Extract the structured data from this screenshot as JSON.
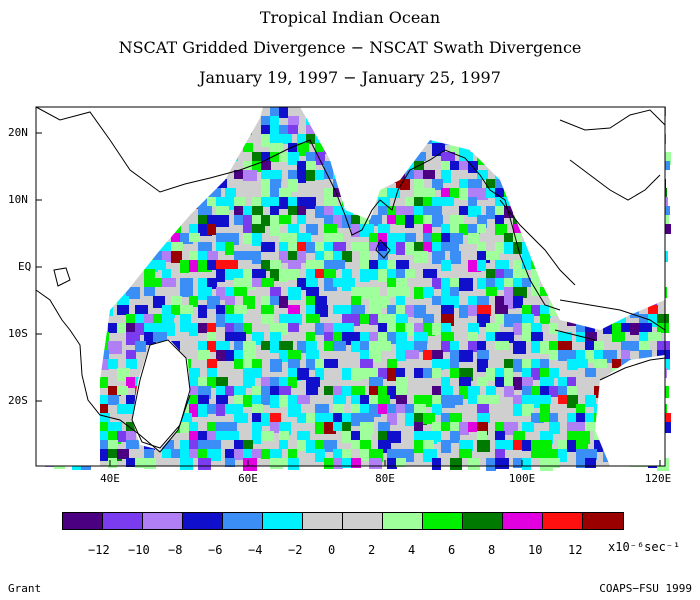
{
  "titles": {
    "line1": "Tropical Indian Ocean",
    "line2": "NSCAT Gridded Divergence − NSCAT Swath Divergence",
    "line3": "January 19, 1997 − January 25, 1997"
  },
  "axes": {
    "lat_labels": [
      "20N",
      "10N",
      "EQ",
      "10S",
      "20S"
    ],
    "lon_labels": [
      "40E",
      "60E",
      "80E",
      "100E",
      "120E"
    ]
  },
  "colorbar": {
    "colors": [
      "#4b0082",
      "#7b3cf0",
      "#b07ef5",
      "#1010cc",
      "#3a8ef5",
      "#00f0ff",
      "#cfcfcf",
      "#cfcfcf",
      "#9fff9a",
      "#00f000",
      "#007a00",
      "#e000e0",
      "#ff1010",
      "#9a0000"
    ],
    "tick_labels": [
      "−12",
      "−10",
      "−8",
      "−6",
      "−4",
      "−2",
      "0",
      "2",
      "4",
      "6",
      "8",
      "10",
      "12"
    ],
    "unit": "x10⁻⁶sec⁻¹"
  },
  "credits": {
    "left": "Grant",
    "right": "COAPS−FSU 1999"
  }
}
